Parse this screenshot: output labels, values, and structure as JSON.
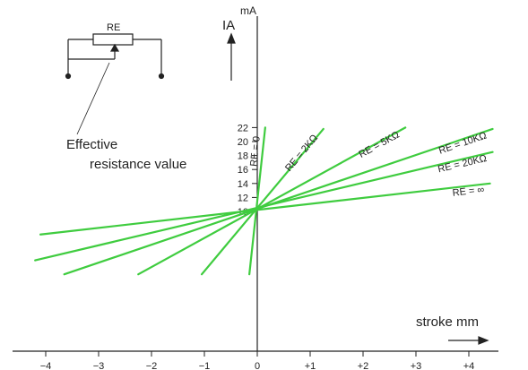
{
  "chart_data": {
    "type": "line",
    "title": "",
    "xlabel": "stroke mm",
    "ylabel": "IA",
    "yunit": "mA",
    "xlim": [
      -4.1,
      4.2
    ],
    "ylim": [
      9.8,
      23.5
    ],
    "x_tick_labels": [
      "−4",
      "−3",
      "−2",
      "−1",
      "0",
      "+1",
      "+2",
      "+3",
      "+4"
    ],
    "x_tick_values": [
      -4,
      -3,
      -2,
      -1,
      0,
      1,
      2,
      3,
      4
    ],
    "y_tick_labels": [
      "10",
      "12",
      "14",
      "16",
      "18",
      "20",
      "22"
    ],
    "y_tick_values": [
      10,
      12,
      14,
      16,
      18,
      20,
      22
    ],
    "line_color": "#3fcc3f",
    "grid": false,
    "series": [
      {
        "name": "RE = 0",
        "x": [
          -0.15,
          0.15
        ],
        "y": [
          1.0,
          22.0
        ]
      },
      {
        "name": "RE = 2KΩ",
        "x": [
          -1.05,
          1.25
        ],
        "y": [
          1.0,
          21.8
        ]
      },
      {
        "name": "RE = 5KΩ",
        "x": [
          -2.25,
          2.8
        ],
        "y": [
          1.0,
          22.0
        ]
      },
      {
        "name": "RE = 10KΩ",
        "x": [
          -3.65,
          4.45
        ],
        "y": [
          1.0,
          21.8
        ]
      },
      {
        "name": "RE = 20KΩ",
        "x": [
          -4.2,
          4.45
        ],
        "y": [
          3.0,
          18.5
        ]
      },
      {
        "name": "RE = ∞",
        "x": [
          -4.1,
          4.4
        ],
        "y": [
          6.7,
          14.0
        ]
      }
    ]
  },
  "schematic": {
    "resistor_label": "RE",
    "annotation_line1": "Effective",
    "annotation_line2": "resistance value"
  }
}
